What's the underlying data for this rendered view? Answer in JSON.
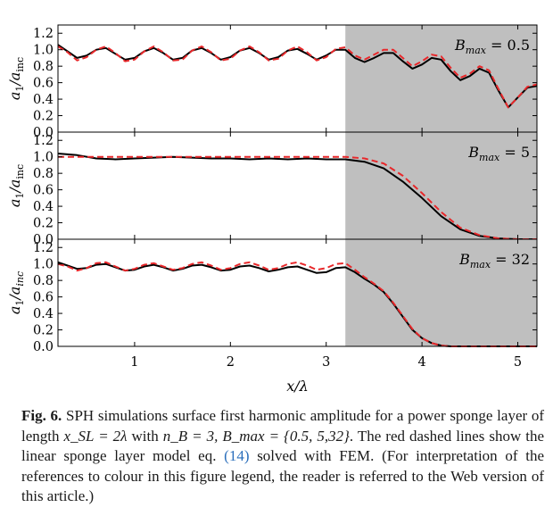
{
  "caption": {
    "label": "Fig. 6.",
    "text_part1": " SPH simulations surface first harmonic amplitude for a power sponge layer of length ",
    "math1": "x_SL = 2λ",
    "text_part2": " with ",
    "math2": "n_B = 3, B_max = {0.5, 5,32}",
    "text_part3": ". The red dashed lines show the linear sponge layer model eq. ",
    "ref": "(14)",
    "text_part4": " solved with FEM. (For interpretation of the references to colour in this figure legend, the reader is referred to the Web version of this article.)"
  },
  "colors": {
    "sph_line": "#000000",
    "fem_line": "#e8282b",
    "sponge_shade": "#bfbfbf"
  },
  "chart_data": [
    {
      "type": "line",
      "panel_label": "B_max = 0.5",
      "ylabel": "a1/ainc",
      "xlim": [
        0.2,
        5.2
      ],
      "ylim": [
        0.0,
        1.3
      ],
      "yticks": [
        "0.0",
        "0.2",
        "0.4",
        "0.6",
        "0.8",
        "1.0",
        "1.2"
      ],
      "shaded_region": [
        3.2,
        5.2
      ],
      "series": [
        {
          "role": "SPH",
          "style": "solid-black",
          "x": [
            0.2,
            0.3,
            0.4,
            0.5,
            0.6,
            0.7,
            0.8,
            0.9,
            1.0,
            1.1,
            1.2,
            1.3,
            1.4,
            1.5,
            1.6,
            1.7,
            1.8,
            1.9,
            2.0,
            2.1,
            2.2,
            2.3,
            2.4,
            2.5,
            2.6,
            2.7,
            2.8,
            2.9,
            3.0,
            3.1,
            3.2,
            3.3,
            3.4,
            3.5,
            3.6,
            3.7,
            3.8,
            3.9,
            4.0,
            4.1,
            4.2,
            4.3,
            4.4,
            4.5,
            4.6,
            4.7,
            4.8,
            4.9,
            5.0,
            5.1,
            5.2
          ],
          "values": [
            1.06,
            0.98,
            0.9,
            0.93,
            1.0,
            1.02,
            0.95,
            0.88,
            0.9,
            0.98,
            1.02,
            0.96,
            0.88,
            0.9,
            0.99,
            1.02,
            0.96,
            0.88,
            0.91,
            0.99,
            1.02,
            0.96,
            0.88,
            0.91,
            0.99,
            1.01,
            0.95,
            0.88,
            0.93,
            1.0,
            1.0,
            0.9,
            0.85,
            0.9,
            0.96,
            0.96,
            0.86,
            0.77,
            0.82,
            0.9,
            0.88,
            0.74,
            0.63,
            0.68,
            0.77,
            0.72,
            0.5,
            0.3,
            0.42,
            0.54,
            0.56
          ]
        },
        {
          "role": "FEM",
          "style": "dashed-red",
          "x": [
            0.2,
            0.3,
            0.4,
            0.5,
            0.6,
            0.7,
            0.8,
            0.9,
            1.0,
            1.1,
            1.2,
            1.3,
            1.4,
            1.5,
            1.6,
            1.7,
            1.8,
            1.9,
            2.0,
            2.1,
            2.2,
            2.3,
            2.4,
            2.5,
            2.6,
            2.7,
            2.8,
            2.9,
            3.0,
            3.1,
            3.2,
            3.3,
            3.4,
            3.5,
            3.6,
            3.7,
            3.8,
            3.9,
            4.0,
            4.1,
            4.2,
            4.3,
            4.4,
            4.5,
            4.6,
            4.7,
            4.8,
            4.9,
            5.0,
            5.1,
            5.2
          ],
          "values": [
            1.04,
            0.97,
            0.87,
            0.91,
            1.0,
            1.04,
            0.96,
            0.86,
            0.88,
            0.98,
            1.04,
            0.97,
            0.87,
            0.88,
            0.99,
            1.04,
            0.97,
            0.87,
            0.89,
            0.99,
            1.04,
            0.97,
            0.87,
            0.89,
            0.99,
            1.04,
            0.97,
            0.87,
            0.91,
            1.01,
            1.03,
            0.93,
            0.88,
            0.94,
            1.0,
            1.0,
            0.9,
            0.8,
            0.86,
            0.94,
            0.92,
            0.78,
            0.66,
            0.71,
            0.8,
            0.75,
            0.52,
            0.3,
            0.42,
            0.55,
            0.58
          ]
        }
      ]
    },
    {
      "type": "line",
      "panel_label": "B_max = 5",
      "ylabel": "a1/ainc",
      "xlim": [
        0.2,
        5.2
      ],
      "ylim": [
        0.0,
        1.3
      ],
      "yticks": [
        "0.0",
        "0.2",
        "0.4",
        "0.6",
        "0.8",
        "1.0",
        "1.2"
      ],
      "shaded_region": [
        3.2,
        5.2
      ],
      "series": [
        {
          "role": "SPH",
          "style": "solid-black",
          "x": [
            0.2,
            0.4,
            0.6,
            0.8,
            1.0,
            1.2,
            1.4,
            1.6,
            1.8,
            2.0,
            2.2,
            2.4,
            2.6,
            2.8,
            3.0,
            3.2,
            3.4,
            3.6,
            3.8,
            4.0,
            4.2,
            4.4,
            4.6,
            4.8,
            5.0,
            5.2
          ],
          "values": [
            1.04,
            1.02,
            0.98,
            0.97,
            0.98,
            0.99,
            1.0,
            0.99,
            0.98,
            0.98,
            0.97,
            0.98,
            0.97,
            0.98,
            0.97,
            0.97,
            0.94,
            0.86,
            0.7,
            0.5,
            0.28,
            0.12,
            0.04,
            0.01,
            0.0,
            0.0
          ]
        },
        {
          "role": "FEM",
          "style": "dashed-red",
          "x": [
            0.2,
            0.4,
            0.6,
            0.8,
            1.0,
            1.2,
            1.4,
            1.6,
            1.8,
            2.0,
            2.2,
            2.4,
            2.6,
            2.8,
            3.0,
            3.2,
            3.4,
            3.6,
            3.8,
            4.0,
            4.2,
            4.4,
            4.6,
            4.8,
            5.0,
            5.2
          ],
          "values": [
            1.0,
            1.0,
            1.0,
            1.0,
            1.0,
            1.0,
            1.0,
            1.0,
            1.0,
            1.0,
            1.0,
            1.0,
            1.0,
            1.0,
            1.0,
            1.0,
            0.98,
            0.92,
            0.77,
            0.56,
            0.33,
            0.14,
            0.05,
            0.01,
            0.0,
            0.0
          ]
        }
      ]
    },
    {
      "type": "line",
      "panel_label": "B_max = 32",
      "ylabel": "a1/ainc",
      "xlabel": "x/λ",
      "xlim": [
        0.2,
        5.2
      ],
      "ylim": [
        0.0,
        1.3
      ],
      "xticks": [
        "1",
        "2",
        "3",
        "4",
        "5"
      ],
      "yticks": [
        "0.0",
        "0.2",
        "0.4",
        "0.6",
        "0.8",
        "1.0",
        "1.2"
      ],
      "shaded_region": [
        3.2,
        5.2
      ],
      "series": [
        {
          "role": "SPH",
          "style": "solid-black",
          "x": [
            0.2,
            0.3,
            0.4,
            0.5,
            0.6,
            0.7,
            0.8,
            0.9,
            1.0,
            1.1,
            1.2,
            1.3,
            1.4,
            1.5,
            1.6,
            1.7,
            1.8,
            1.9,
            2.0,
            2.1,
            2.2,
            2.3,
            2.4,
            2.5,
            2.6,
            2.7,
            2.8,
            2.9,
            3.0,
            3.1,
            3.2,
            3.3,
            3.4,
            3.5,
            3.6,
            3.7,
            3.8,
            3.9,
            4.0,
            4.1,
            4.2,
            4.3,
            4.4,
            4.6,
            4.8,
            5.0,
            5.2
          ],
          "values": [
            1.02,
            0.98,
            0.94,
            0.95,
            0.99,
            1.0,
            0.96,
            0.92,
            0.93,
            0.97,
            0.99,
            0.96,
            0.92,
            0.94,
            0.98,
            0.99,
            0.96,
            0.92,
            0.93,
            0.97,
            0.98,
            0.95,
            0.91,
            0.93,
            0.96,
            0.97,
            0.93,
            0.89,
            0.9,
            0.95,
            0.96,
            0.9,
            0.82,
            0.75,
            0.66,
            0.52,
            0.36,
            0.2,
            0.1,
            0.04,
            0.01,
            0.0,
            0.0,
            0.0,
            0.0,
            0.0,
            0.0
          ]
        },
        {
          "role": "FEM",
          "style": "dashed-red",
          "x": [
            0.2,
            0.3,
            0.4,
            0.5,
            0.6,
            0.7,
            0.8,
            0.9,
            1.0,
            1.1,
            1.2,
            1.3,
            1.4,
            1.5,
            1.6,
            1.7,
            1.8,
            1.9,
            2.0,
            2.1,
            2.2,
            2.3,
            2.4,
            2.5,
            2.6,
            2.7,
            2.8,
            2.9,
            3.0,
            3.1,
            3.2,
            3.3,
            3.4,
            3.5,
            3.6,
            3.7,
            3.8,
            3.9,
            4.0,
            4.1,
            4.2,
            4.3,
            4.4,
            4.6,
            4.8,
            5.0,
            5.2
          ],
          "values": [
            1.0,
            0.97,
            0.92,
            0.95,
            1.01,
            1.02,
            0.97,
            0.92,
            0.94,
            0.99,
            1.01,
            0.97,
            0.93,
            0.95,
            1.0,
            1.02,
            0.98,
            0.93,
            0.95,
            1.0,
            1.02,
            0.98,
            0.93,
            0.95,
            1.0,
            1.02,
            0.98,
            0.93,
            0.95,
            1.0,
            1.01,
            0.93,
            0.84,
            0.76,
            0.67,
            0.53,
            0.37,
            0.21,
            0.1,
            0.04,
            0.01,
            0.0,
            0.0,
            0.0,
            0.0,
            0.0,
            0.0
          ]
        }
      ]
    }
  ]
}
